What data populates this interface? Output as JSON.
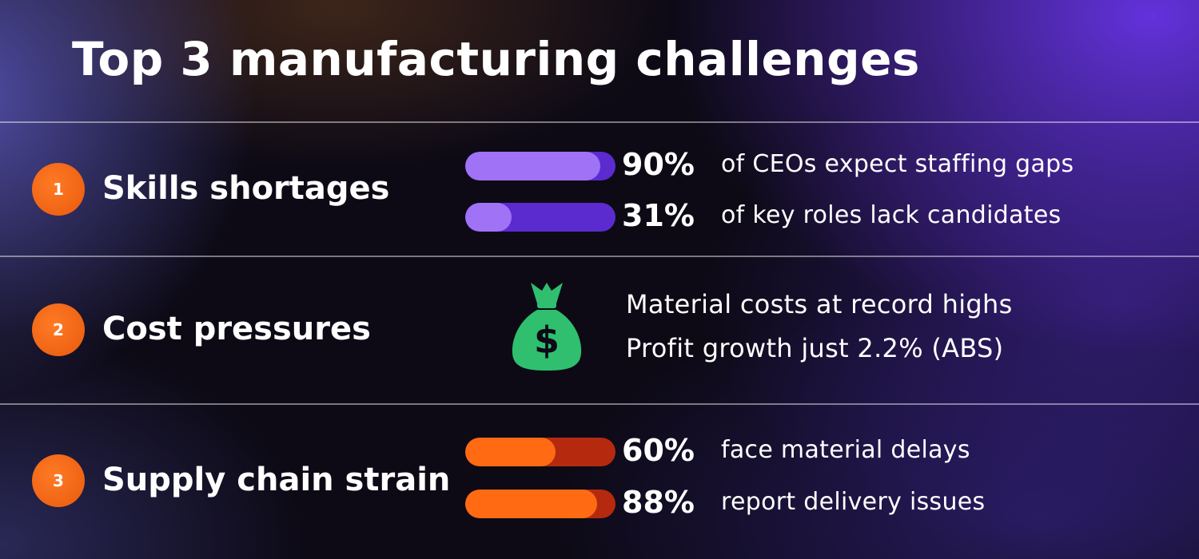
{
  "title": "Top 3 manufacturing challenges",
  "colors": {
    "badge": "#ff6a12",
    "purple_bar_fill": "#a072f5",
    "purple_bar_track": "#5b2bd0",
    "orange_bar_fill": "#ff6a12",
    "orange_bar_track": "#b52a0e",
    "money_bag": "#2fbf6e"
  },
  "rows": [
    {
      "number": "1",
      "title": "Skills shortages",
      "stats": [
        {
          "percent": 90,
          "label": "90%",
          "description": "of CEOs expect staffing gaps"
        },
        {
          "percent": 31,
          "label": "31%",
          "description": "of key roles lack candidates"
        }
      ]
    },
    {
      "number": "2",
      "title": "Cost pressures",
      "icon": "money-bag-icon",
      "lines": [
        "Material costs at record highs",
        "Profit growth just 2.2% (ABS)"
      ]
    },
    {
      "number": "3",
      "title": "Supply chain strain",
      "stats": [
        {
          "percent": 60,
          "label": "60%",
          "description": "face material delays"
        },
        {
          "percent": 88,
          "label": "88%",
          "description": "report delivery issues"
        }
      ]
    }
  ]
}
